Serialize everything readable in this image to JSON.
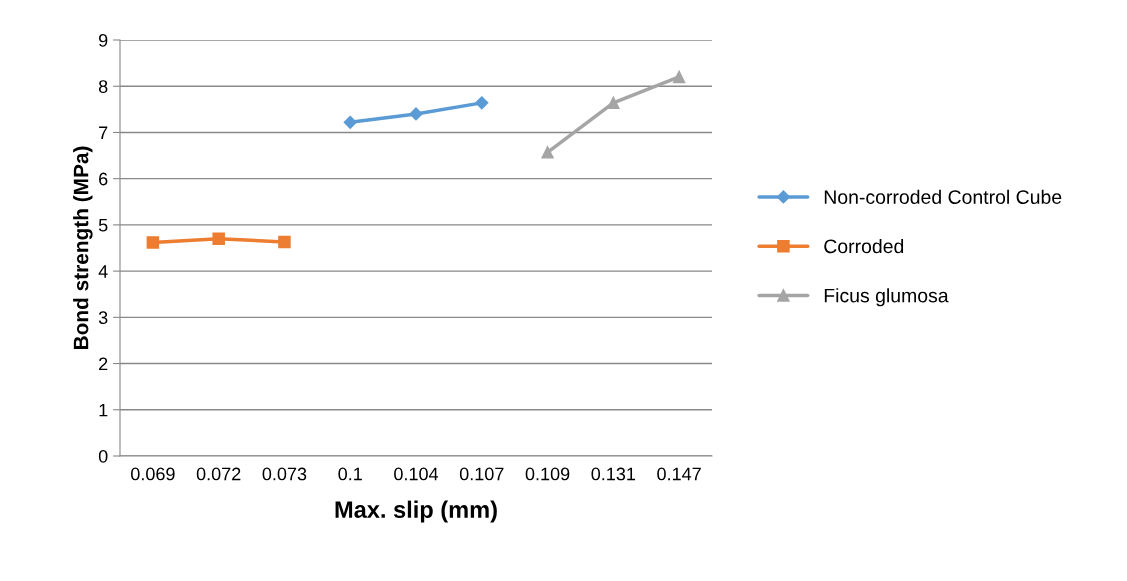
{
  "chart_data": {
    "type": "line",
    "xlabel": "Max. slip (mm)",
    "ylabel": "Bond strength (MPa)",
    "categories": [
      "0.069",
      "0.072",
      "0.073",
      "0.1",
      "0.104",
      "0.107",
      "0.109",
      "0.131",
      "0.147"
    ],
    "series": [
      {
        "name": "Non-corroded Control Cube",
        "color": "#5b9bd5",
        "marker": "diamond",
        "values": [
          null,
          null,
          null,
          7.22,
          7.4,
          7.64,
          null,
          null,
          null
        ]
      },
      {
        "name": "Corroded",
        "color": "#ed7d31",
        "marker": "square",
        "values": [
          4.62,
          4.7,
          4.63,
          null,
          null,
          null,
          null,
          null,
          null
        ]
      },
      {
        "name": "Ficus glumosa",
        "color": "#a5a5a5",
        "marker": "triangle",
        "values": [
          null,
          null,
          null,
          null,
          null,
          null,
          6.57,
          7.64,
          8.2
        ]
      }
    ],
    "ylim": [
      0,
      9
    ],
    "yticks": [
      0,
      1,
      2,
      3,
      4,
      5,
      6,
      7,
      8,
      9
    ],
    "grid": "y",
    "legend": "right",
    "line_style": "solid"
  }
}
